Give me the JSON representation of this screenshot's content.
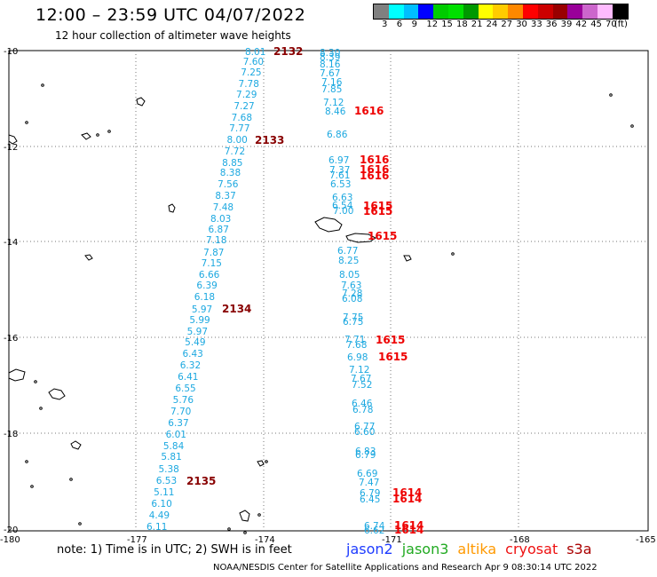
{
  "header": {
    "title": "12:00 – 23:59 UTC 04/07/2022",
    "subtitle": "12 hour collection of altimeter wave heights"
  },
  "legend": {
    "colors": [
      "#808080",
      "#00ffff",
      "#00bfff",
      "#0000ff",
      "#00cc00",
      "#00e000",
      "#009900",
      "#ffff00",
      "#ffcc00",
      "#ff8800",
      "#ff0000",
      "#cc0000",
      "#990000",
      "#990099",
      "#cc66cc",
      "#ffbbff",
      "#000000"
    ],
    "labels": [
      "3",
      "6",
      "9",
      "12",
      "15",
      "18",
      "21",
      "24",
      "27",
      "30",
      "33",
      "36",
      "39",
      "42",
      "45",
      "70",
      "(ft)"
    ]
  },
  "axes": {
    "lon_ticks": [
      "-180",
      "-177",
      "-174",
      "-171",
      "-168",
      "-165"
    ],
    "lat_ticks": [
      "-10",
      "-12",
      "-14",
      "-16",
      "-18",
      "-20"
    ]
  },
  "track_color": "#1ca8e0",
  "time_colors": {
    "left": "#880000",
    "right": "#ee0000"
  },
  "tracks": [
    {
      "values": [
        "8.01",
        "7.60",
        "7.25",
        "7.78",
        "7.29",
        "7.27",
        "7.68",
        "7.77",
        "8.00",
        "7.72",
        "8.85",
        "8.38",
        "7.56",
        "8.37",
        "7.48",
        "8.03",
        "6.87",
        "7.18",
        "7.87",
        "7.15",
        "6.66",
        "6.39",
        "6.18",
        "5.97",
        "5.99",
        "5.97",
        "5.49",
        "6.43",
        "6.32",
        "6.41",
        "6.55",
        "5.76",
        "7.70",
        "6.37",
        "6.01",
        "5.84",
        "5.81",
        "5.38",
        "6.53",
        "5.11",
        "6.10",
        "4.49",
        "6.11"
      ],
      "times": [
        "2132",
        "2133",
        "2134",
        "2135"
      ]
    },
    {
      "values": [
        "8.30",
        "8.39",
        "8.16",
        "7.67",
        "7.16",
        "7.85",
        "7.12",
        "8.46",
        "6.86",
        "6.97",
        "7.37",
        "7.61",
        "6.53",
        "6.63",
        "6.54",
        "7.00",
        "6.77",
        "8.25",
        "8.05",
        "7.63",
        "7.28",
        "6.08",
        "7.75",
        "6.75",
        "7.71",
        "7.68",
        "6.98",
        "7.12",
        "7.67",
        "7.52",
        "6.46",
        "6.78",
        "6.77",
        "6.60",
        "6.83",
        "6.79",
        "6.69",
        "7.47",
        "6.79",
        "6.45",
        "6.74",
        "6.62"
      ],
      "times": [
        "1616",
        "1616",
        "1616",
        "1616",
        "1615",
        "1615",
        "1615",
        "1615",
        "1615",
        "1614",
        "1614",
        "1614",
        "1614"
      ]
    }
  ],
  "footer": {
    "note": "note:  1) Time is in UTC;  2) SWH is in feet",
    "satellites": [
      {
        "name": "jason2",
        "color": "#1e3cff"
      },
      {
        "name": "jason3",
        "color": "#22aa22"
      },
      {
        "name": "altika",
        "color": "#ff9900"
      },
      {
        "name": "cryosat",
        "color": "#ee1111"
      },
      {
        "name": "s3a",
        "color": "#aa0000"
      }
    ],
    "credit": "NOAA/NESDIS Center for Satellite Applications and Research     Apr  9 08:30:14 UTC 2022"
  }
}
